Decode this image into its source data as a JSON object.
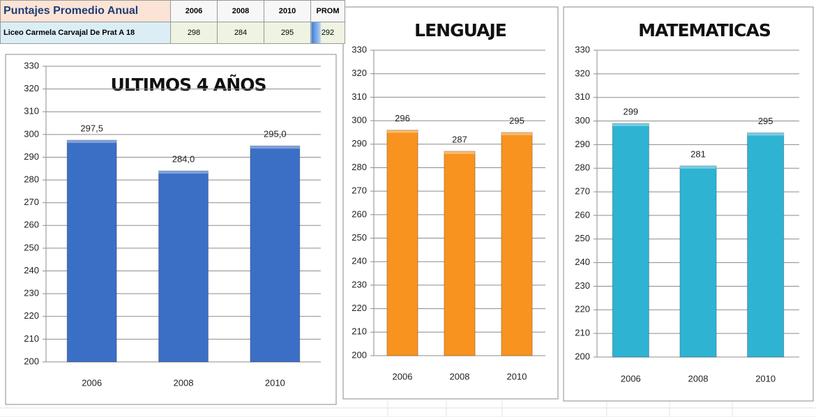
{
  "table": {
    "header": [
      "Puntajes Promedio Anual",
      "2006",
      "2008",
      "2010",
      "PROM"
    ],
    "rows": [
      [
        "Liceo Carmela Carvajal De Prat A 18",
        298,
        284,
        295,
        292
      ]
    ]
  },
  "chart_data": [
    {
      "type": "bar",
      "title": "ULTIMOS 4 AÑOS",
      "categories": [
        "2006",
        "2008",
        "2010"
      ],
      "values": [
        297.5,
        284.0,
        295.0
      ],
      "value_labels": [
        "297,5",
        "284,0",
        "295,0"
      ],
      "color": "#3b6fc6",
      "ylim": [
        200,
        330
      ],
      "yticks": [
        200,
        210,
        220,
        230,
        240,
        250,
        260,
        270,
        280,
        290,
        300,
        310,
        320,
        330
      ],
      "grid": true
    },
    {
      "type": "bar",
      "title": "LENGUAJE",
      "categories": [
        "2006",
        "2008",
        "2010"
      ],
      "values": [
        296,
        287,
        295
      ],
      "color": "#f7931e",
      "ylim": [
        200,
        330
      ],
      "yticks": [
        200,
        210,
        220,
        230,
        240,
        250,
        260,
        270,
        280,
        290,
        300,
        310,
        320,
        330
      ],
      "grid": true
    },
    {
      "type": "bar",
      "title": "MATEMATICAS",
      "categories": [
        "2006",
        "2008",
        "2010"
      ],
      "values": [
        299,
        281,
        295
      ],
      "color": "#2fb3d3",
      "ylim": [
        200,
        330
      ],
      "yticks": [
        200,
        210,
        220,
        230,
        240,
        250,
        260,
        270,
        280,
        290,
        300,
        310,
        320,
        330
      ],
      "grid": true
    }
  ]
}
